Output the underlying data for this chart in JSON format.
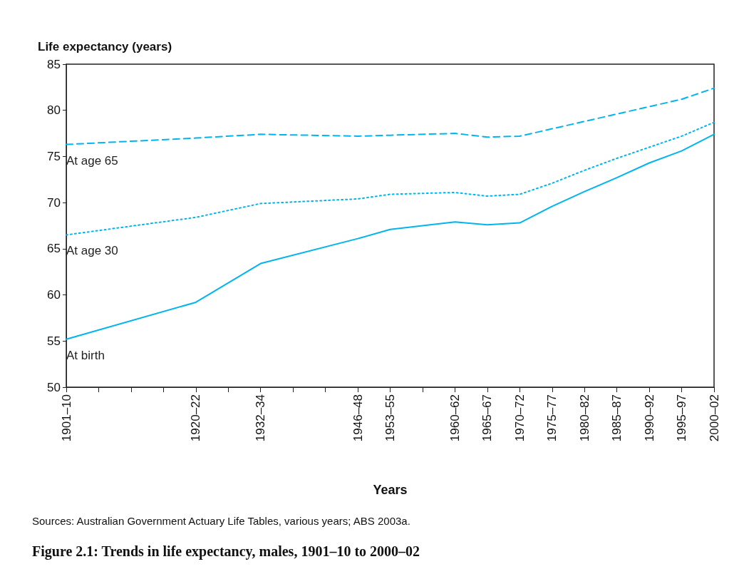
{
  "chart_data": {
    "type": "line",
    "title": "Figure 2.1: Trends in life expectancy, males, 1901–10 to 2000–02",
    "xlabel": "Years",
    "ylabel": "Life expectancy (years)",
    "annotations": [
      "Sources: Australian Government Actuary Life Tables, various years; ABS 2003a."
    ],
    "categories": [
      "1901–10",
      null,
      null,
      null,
      "1920–22",
      null,
      "1932–34",
      null,
      null,
      "1946–48",
      "1953–55",
      null,
      "1960–62",
      "1965–67",
      "1970–72",
      "1975–77",
      "1980–82",
      "1985–87",
      "1990–92",
      "1995–97",
      "2000–02"
    ],
    "series": [
      {
        "name": "At age 65",
        "color": "#00b5ef",
        "line_style": "dashed",
        "values": [
          76.3,
          null,
          null,
          null,
          77.0,
          null,
          77.4,
          null,
          null,
          77.2,
          77.3,
          null,
          77.5,
          77.1,
          77.2,
          78.0,
          78.8,
          79.6,
          80.4,
          81.2,
          82.4
        ]
      },
      {
        "name": "At age 30",
        "color": "#00b5ef",
        "line_style": "dotted",
        "values": [
          66.5,
          null,
          null,
          null,
          68.4,
          null,
          69.9,
          null,
          null,
          70.4,
          70.9,
          null,
          71.1,
          70.7,
          70.9,
          72.1,
          73.5,
          74.8,
          76.0,
          77.2,
          78.7
        ]
      },
      {
        "name": "At birth",
        "color": "#00b5ef",
        "line_style": "solid",
        "values": [
          55.2,
          null,
          null,
          null,
          59.2,
          null,
          63.4,
          null,
          null,
          66.1,
          67.1,
          null,
          67.9,
          67.6,
          67.8,
          69.6,
          71.2,
          72.7,
          74.3,
          75.6,
          77.4
        ]
      }
    ],
    "ylim": [
      50,
      85
    ],
    "yticks": [
      50,
      55,
      60,
      65,
      70,
      75,
      80,
      85
    ],
    "grid": false,
    "legend": false,
    "marker": "none"
  }
}
